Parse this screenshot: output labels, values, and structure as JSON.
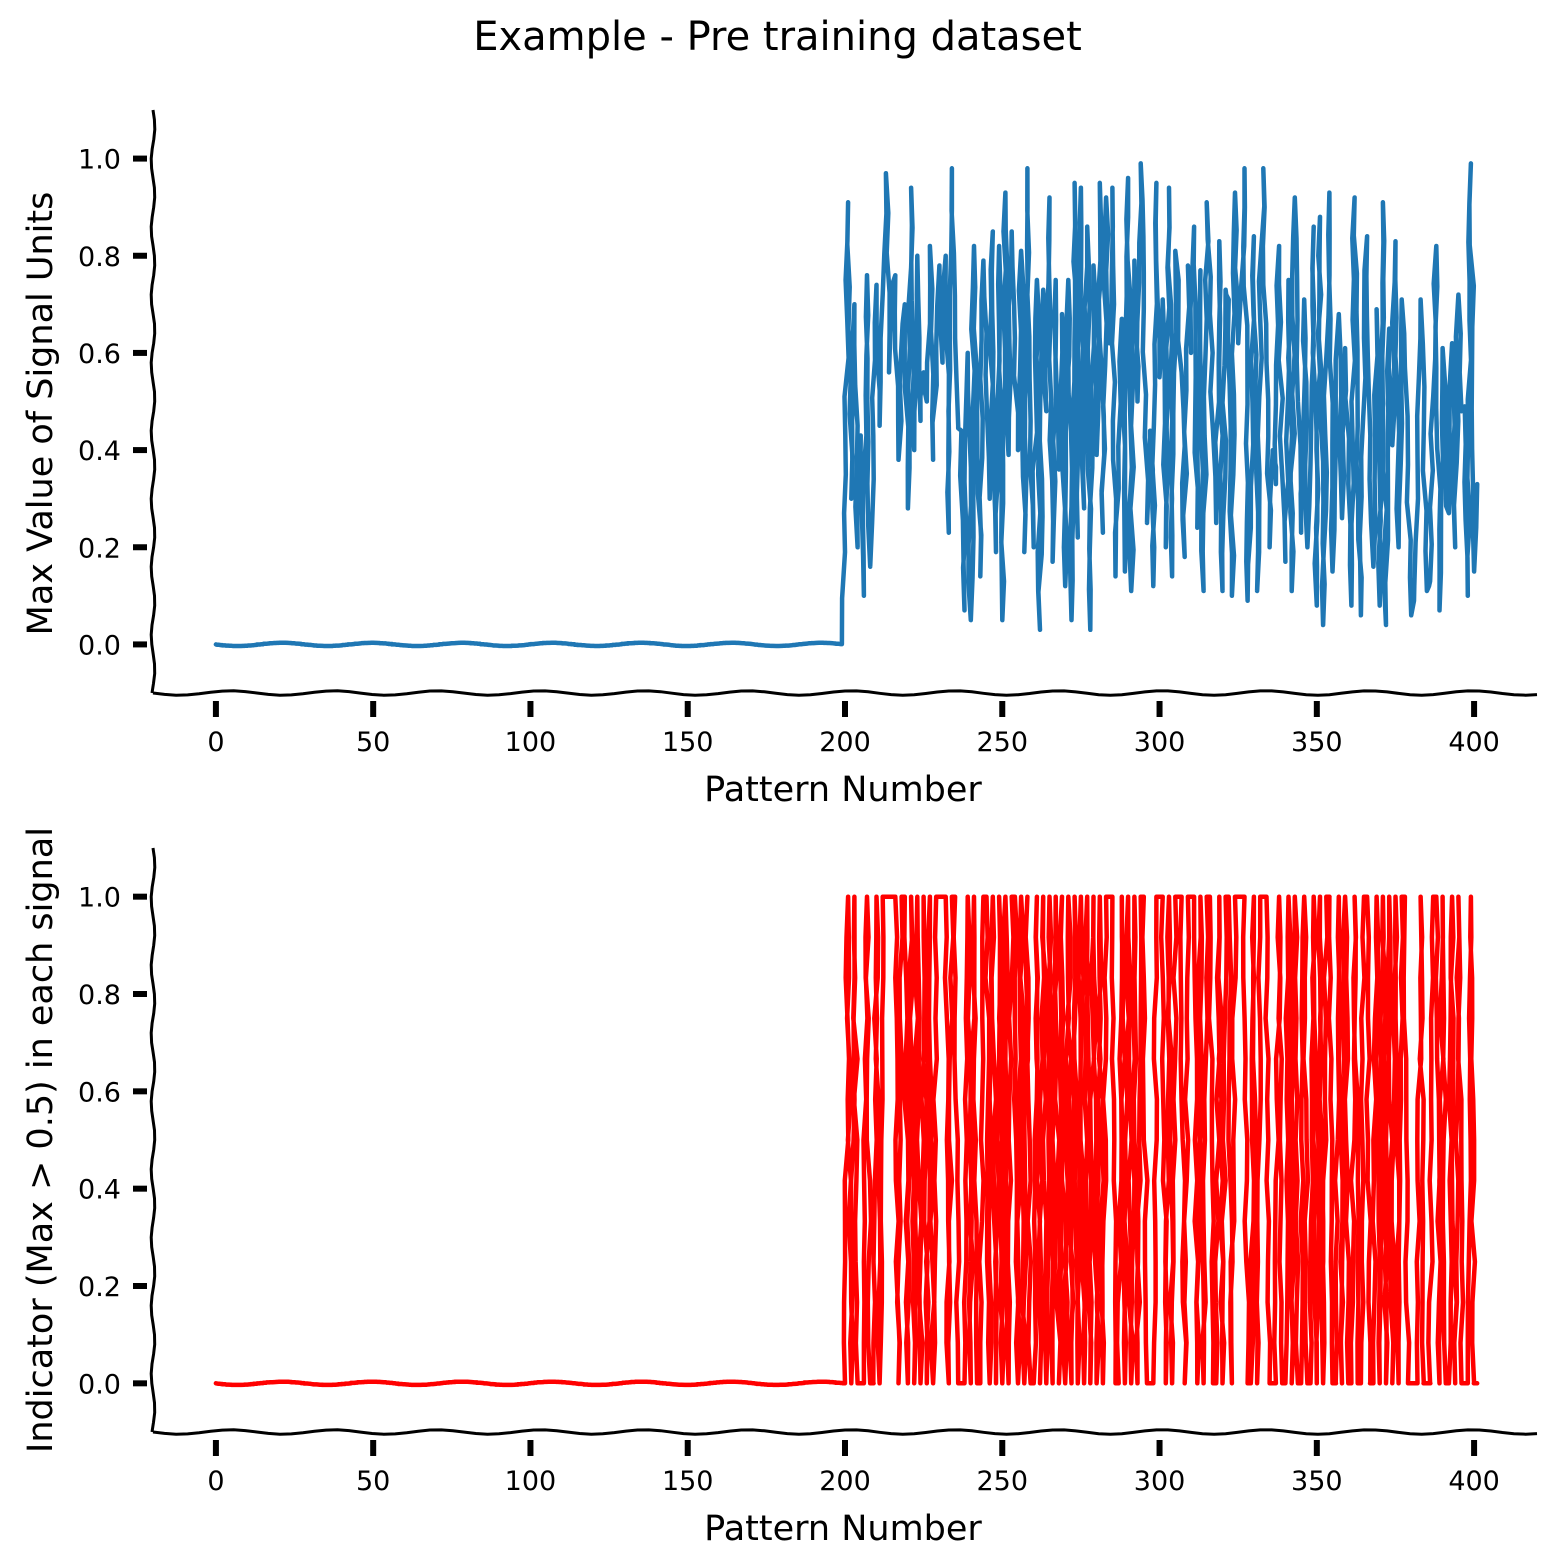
{
  "figure": {
    "title": "Example - Pre training dataset"
  },
  "chart_data": [
    {
      "type": "line",
      "title": "",
      "xlabel": "Pattern Number",
      "ylabel": "Max Value of Signal Units",
      "xlim": [
        -20,
        420
      ],
      "ylim": [
        -0.1,
        1.1
      ],
      "xticks": [
        0,
        50,
        100,
        150,
        200,
        250,
        300,
        350,
        400
      ],
      "xtick_labels": [
        "0",
        "50",
        "100",
        "150",
        "200",
        "250",
        "300",
        "350",
        "400"
      ],
      "yticks": [
        0.0,
        0.2,
        0.4,
        0.6,
        0.8,
        1.0
      ],
      "ytick_labels": [
        "0.0",
        "0.2",
        "0.4",
        "0.6",
        "0.8",
        "1.0"
      ],
      "grid": false,
      "style": "xkcd",
      "series": [
        {
          "color": "#1f77b4",
          "x_start": 0,
          "values": [
            0,
            0,
            0,
            0,
            0,
            0,
            0,
            0,
            0,
            0,
            0,
            0,
            0,
            0,
            0,
            0,
            0,
            0,
            0,
            0,
            0,
            0,
            0,
            0,
            0,
            0,
            0,
            0,
            0,
            0,
            0,
            0,
            0,
            0,
            0,
            0,
            0,
            0,
            0,
            0,
            0,
            0,
            0,
            0,
            0,
            0,
            0,
            0,
            0,
            0,
            0,
            0,
            0,
            0,
            0,
            0,
            0,
            0,
            0,
            0,
            0,
            0,
            0,
            0,
            0,
            0,
            0,
            0,
            0,
            0,
            0,
            0,
            0,
            0,
            0,
            0,
            0,
            0,
            0,
            0,
            0,
            0,
            0,
            0,
            0,
            0,
            0,
            0,
            0,
            0,
            0,
            0,
            0,
            0,
            0,
            0,
            0,
            0,
            0,
            0,
            0,
            0,
            0,
            0,
            0,
            0,
            0,
            0,
            0,
            0,
            0,
            0,
            0,
            0,
            0,
            0,
            0,
            0,
            0,
            0,
            0,
            0,
            0,
            0,
            0,
            0,
            0,
            0,
            0,
            0,
            0,
            0,
            0,
            0,
            0,
            0,
            0,
            0,
            0,
            0,
            0,
            0,
            0,
            0,
            0,
            0,
            0,
            0,
            0,
            0,
            0,
            0,
            0,
            0,
            0,
            0,
            0,
            0,
            0,
            0,
            0,
            0,
            0,
            0,
            0,
            0,
            0,
            0,
            0,
            0,
            0,
            0,
            0,
            0,
            0,
            0,
            0,
            0,
            0,
            0,
            0,
            0,
            0,
            0,
            0,
            0,
            0,
            0,
            0,
            0,
            0,
            0,
            0,
            0,
            0,
            0,
            0,
            0,
            0,
            0,
            0.19,
            0.91,
            0.3,
            0.7,
            0.2,
            0.43,
            0.1,
            0.76,
            0.16,
            0.43,
            0.74,
            0.45,
            0.72,
            0.97,
            0.56,
            0.72,
            0.76,
            0.38,
            0.62,
            0.7,
            0.28,
            0.94,
            0.4,
            0.8,
            0.46,
            0.56,
            0.5,
            0.82,
            0.38,
            0.61,
            0.78,
            0.58,
            0.8,
            0.23,
            0.98,
            0.63,
            0.45,
            0.44,
            0.07,
            0.6,
            0.05,
            0.82,
            0.48,
            0.14,
            0.79,
            0.64,
            0.3,
            0.85,
            0.19,
            0.82,
            0.05,
            0.93,
            0.39,
            0.85,
            0.63,
            0.4,
            0.81,
            0.19,
            0.98,
            0.46,
            0.2,
            0.75,
            0.03,
            0.73,
            0.48,
            0.92,
            0.17,
            0.75,
            0.36,
            0.68,
            0.12,
            0.75,
            0.05,
            0.95,
            0.22,
            0.94,
            0.28,
            0.86,
            0.03,
            0.78,
            0.39,
            0.95,
            0.23,
            0.92,
            0.62,
            0.94,
            0.14,
            0.32,
            0.67,
            0.15,
            0.96,
            0.11,
            0.79,
            0.5,
            0.99,
            0.69,
            0.25,
            0.44,
            0.12,
            0.95,
            0.55,
            0.71,
            0.2,
            0.94,
            0.14,
            0.81,
            0.69,
            0.56,
            0.18,
            0.78,
            0.6,
            0.86,
            0.24,
            0.77,
            0.11,
            0.91,
            0.68,
            0.44,
            0.25,
            0.83,
            0.11,
            0.73,
            0.71,
            0.1,
            0.93,
            0.62,
            0.74,
            0.98,
            0.09,
            0.24,
            0.84,
            0.11,
            0.67,
            0.98,
            0.58,
            0.2,
            0.4,
            0.33,
            0.82,
            0.35,
            0.17,
            0.75,
            0.11,
            0.92,
            0.5,
            0.23,
            0.71,
            0.2,
            0.37,
            0.86,
            0.08,
            0.88,
            0.04,
            0.59,
            0.93,
            0.15,
            0.49,
            0.68,
            0.26,
            0.61,
            0.33,
            0.08,
            0.92,
            0.45,
            0.06,
            0.63,
            0.84,
            0.43,
            0.16,
            0.69,
            0.08,
            0.91,
            0.04,
            0.65,
            0.41,
            0.83,
            0.2,
            0.71,
            0.57,
            0.37,
            0.06,
            0.12,
            0.39,
            0.71,
            0.44,
            0.11,
            0.13,
            0.51,
            0.82,
            0.07,
            0.61,
            0.3,
            0.27,
            0.62,
            0.2,
            0.72,
            0.48,
            0.49,
            0.1,
            0.99,
            0.15,
            0.33
          ]
        }
      ]
    },
    {
      "type": "line",
      "title": "",
      "xlabel": "Pattern Number",
      "ylabel": "Indicator (Max > 0.5) in each signal",
      "xlim": [
        -20,
        420
      ],
      "ylim": [
        -0.1,
        1.1
      ],
      "xticks": [
        0,
        50,
        100,
        150,
        200,
        250,
        300,
        350,
        400
      ],
      "xtick_labels": [
        "0",
        "50",
        "100",
        "150",
        "200",
        "250",
        "300",
        "350",
        "400"
      ],
      "yticks": [
        0.0,
        0.2,
        0.4,
        0.6,
        0.8,
        1.0
      ],
      "ytick_labels": [
        "0.0",
        "0.2",
        "0.4",
        "0.6",
        "0.8",
        "1.0"
      ],
      "grid": false,
      "style": "xkcd",
      "series": [
        {
          "color": "#ff0000",
          "x_start": 0,
          "derived_from_threshold": 0.5
        }
      ]
    }
  ]
}
